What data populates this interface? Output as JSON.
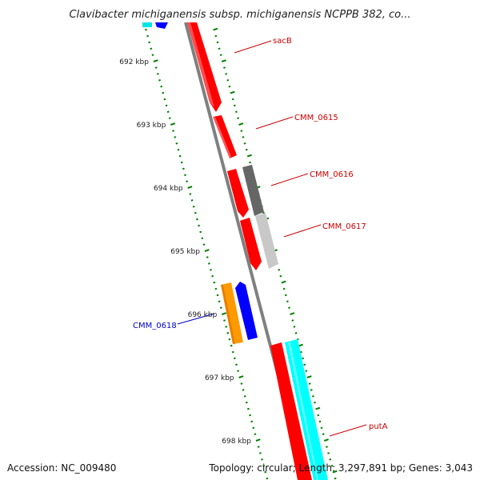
{
  "title": "Clavibacter michiganensis subsp. michiganensis NCPPB 382, co...",
  "footer": {
    "accession": "Accession: NC_009480",
    "topology": "Topology: circular; Length: 3,297,891 bp; Genes: 3,043"
  },
  "colors": {
    "backbone": "#808080",
    "forward_gene": "#ff0000",
    "reverse_gene": "#0000ff",
    "rna_gene": "#ff9900",
    "cds_gray": "#666666",
    "cds_light": "#cccccc",
    "cyan_track": "#00ffff",
    "tick": "#008000",
    "forward_label": "#cc0000",
    "reverse_label": "#0000cc"
  },
  "axis": {
    "unit": "kbp",
    "ticks": [
      {
        "value": 692,
        "label": "692 kbp"
      },
      {
        "value": 693,
        "label": "693 kbp"
      },
      {
        "value": 694,
        "label": "694 kbp"
      },
      {
        "value": 695,
        "label": "695 kbp"
      },
      {
        "value": 696,
        "label": "696 kbp"
      },
      {
        "value": 697,
        "label": "697 kbp"
      },
      {
        "value": 698,
        "label": "698 kbp"
      }
    ]
  },
  "genes": [
    {
      "label": "sacB",
      "strand": "+",
      "color": "forward_gene"
    },
    {
      "label": "CMM_0615",
      "strand": "+",
      "color": "forward_gene"
    },
    {
      "label": "CMM_0616",
      "strand": "+",
      "color": "forward_gene"
    },
    {
      "label": "CMM_0617",
      "strand": "+",
      "color": "forward_gene"
    },
    {
      "label": "CMM_0618",
      "strand": "-",
      "color": "reverse_gene"
    },
    {
      "label": "putA",
      "strand": "+",
      "color": "forward_gene"
    }
  ]
}
